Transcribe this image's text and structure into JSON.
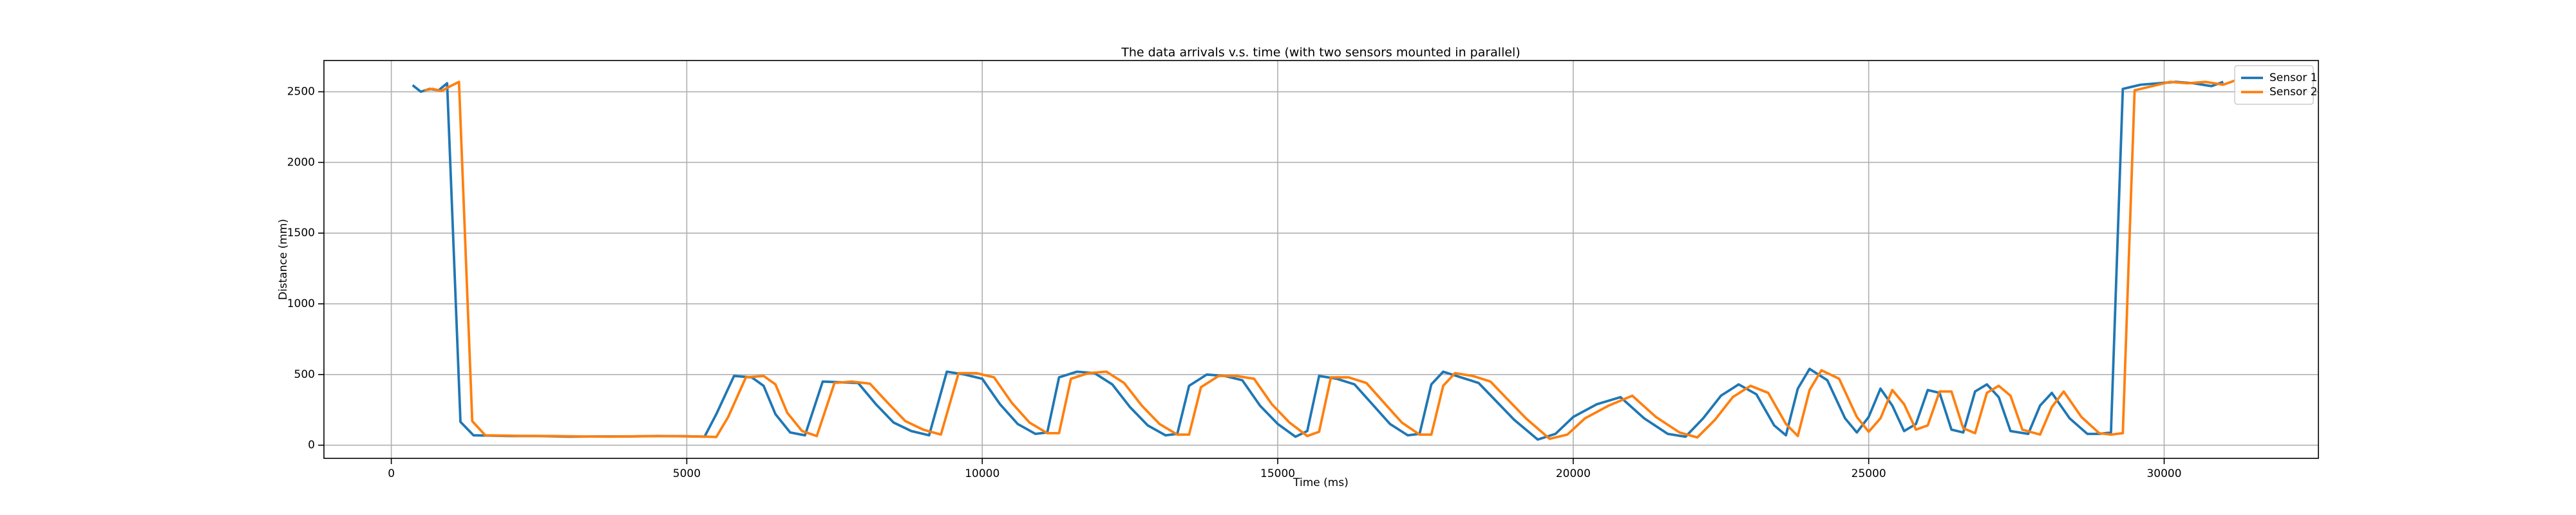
{
  "chart_data": {
    "type": "line",
    "title": "The data arrivals v.s. time (with two sensors mounted in parallel)",
    "x_label": "Time (ms)",
    "y_label": "Distance (mm)",
    "xlim": [
      -1140,
      32610
    ],
    "ylim": [
      -93,
      2721
    ],
    "xticks": [
      0,
      5000,
      10000,
      15000,
      20000,
      25000,
      30000
    ],
    "yticks": [
      0,
      500,
      1000,
      1500,
      2000,
      2500
    ],
    "grid": true,
    "legend": "upper right",
    "series": [
      {
        "name": "Sensor 1",
        "color": "#1f77b4",
        "x": [
          361,
          500,
          650,
          800,
          945,
          1170,
          1390,
          2000,
          2500,
          3000,
          3500,
          4000,
          4500,
          5000,
          5300,
          5500,
          5800,
          6100,
          6300,
          6500,
          6750,
          7000,
          7300,
          7600,
          7900,
          8200,
          8500,
          8800,
          9100,
          9400,
          9700,
          10000,
          10300,
          10600,
          10900,
          11100,
          11300,
          11600,
          11900,
          12200,
          12500,
          12800,
          13100,
          13300,
          13500,
          13800,
          14100,
          14400,
          14700,
          15000,
          15300,
          15500,
          15700,
          16000,
          16300,
          16600,
          16900,
          17200,
          17400,
          17600,
          17800,
          18100,
          18400,
          18700,
          19000,
          19400,
          19700,
          20000,
          20400,
          20800,
          21200,
          21600,
          21900,
          22200,
          22500,
          22800,
          23100,
          23400,
          23600,
          23800,
          24000,
          24300,
          24600,
          24800,
          25000,
          25200,
          25400,
          25600,
          25800,
          26000,
          26200,
          26400,
          26600,
          26800,
          27000,
          27200,
          27400,
          27700,
          27900,
          28100,
          28400,
          28700,
          28900,
          29100,
          29300,
          29600,
          29900,
          30200,
          30500,
          30800,
          31000
        ],
        "values": [
          2546,
          2500,
          2520,
          2510,
          2560,
          165,
          70,
          65,
          65,
          60,
          62,
          62,
          65,
          63,
          60,
          220,
          490,
          480,
          420,
          220,
          90,
          70,
          450,
          445,
          440,
          290,
          160,
          100,
          70,
          520,
          500,
          470,
          290,
          150,
          80,
          90,
          480,
          520,
          510,
          430,
          270,
          140,
          70,
          80,
          420,
          500,
          490,
          460,
          280,
          150,
          60,
          100,
          490,
          470,
          430,
          290,
          150,
          70,
          80,
          430,
          520,
          480,
          440,
          310,
          180,
          40,
          80,
          200,
          290,
          340,
          190,
          80,
          60,
          190,
          350,
          430,
          360,
          140,
          70,
          400,
          540,
          460,
          190,
          90,
          200,
          400,
          280,
          100,
          150,
          390,
          370,
          110,
          90,
          380,
          430,
          340,
          100,
          80,
          280,
          370,
          190,
          80,
          80,
          90,
          2520,
          2550,
          2560,
          2570,
          2560,
          2540,
          2570
        ]
      },
      {
        "name": "Sensor 2",
        "color": "#ff7f0e",
        "x": [
          561,
          700,
          850,
          1000,
          1145,
          1370,
          1590,
          2200,
          2700,
          3200,
          3700,
          4200,
          4700,
          5200,
          5500,
          5700,
          6000,
          6300,
          6500,
          6700,
          6950,
          7200,
          7500,
          7800,
          8100,
          8400,
          8700,
          9000,
          9300,
          9600,
          9900,
          10200,
          10500,
          10800,
          11100,
          11300,
          11500,
          11800,
          12100,
          12400,
          12700,
          13000,
          13300,
          13500,
          13700,
          14000,
          14300,
          14600,
          14900,
          15200,
          15500,
          15700,
          15900,
          16200,
          16500,
          16800,
          17100,
          17400,
          17600,
          17800,
          18000,
          18300,
          18600,
          18900,
          19200,
          19600,
          19900,
          20200,
          20600,
          21000,
          21400,
          21800,
          22100,
          22400,
          22700,
          23000,
          23300,
          23600,
          23800,
          24000,
          24200,
          24500,
          24800,
          25000,
          25200,
          25400,
          25600,
          25800,
          26000,
          26200,
          26400,
          26600,
          26800,
          27000,
          27200,
          27400,
          27600,
          27900,
          28100,
          28300,
          28600,
          28900,
          29100,
          29300,
          29500,
          29800,
          30100,
          30400,
          30700,
          31000,
          31200
        ],
        "values": [
          2510,
          2520,
          2505,
          2540,
          2570,
          170,
          70,
          66,
          65,
          62,
          60,
          63,
          64,
          62,
          58,
          200,
          480,
          490,
          430,
          230,
          100,
          65,
          440,
          450,
          435,
          300,
          170,
          110,
          75,
          510,
          510,
          480,
          300,
          160,
          85,
          85,
          470,
          510,
          520,
          440,
          280,
          150,
          75,
          75,
          410,
          490,
          490,
          470,
          290,
          160,
          65,
          95,
          480,
          480,
          440,
          300,
          160,
          75,
          75,
          420,
          510,
          490,
          450,
          320,
          190,
          45,
          75,
          190,
          280,
          350,
          200,
          90,
          55,
          180,
          340,
          420,
          370,
          150,
          65,
          390,
          530,
          470,
          200,
          95,
          190,
          390,
          290,
          110,
          140,
          380,
          380,
          120,
          85,
          370,
          420,
          350,
          110,
          75,
          270,
          380,
          200,
          85,
          75,
          85,
          2510,
          2540,
          2570,
          2560,
          2570,
          2550,
          2580
        ]
      }
    ]
  }
}
